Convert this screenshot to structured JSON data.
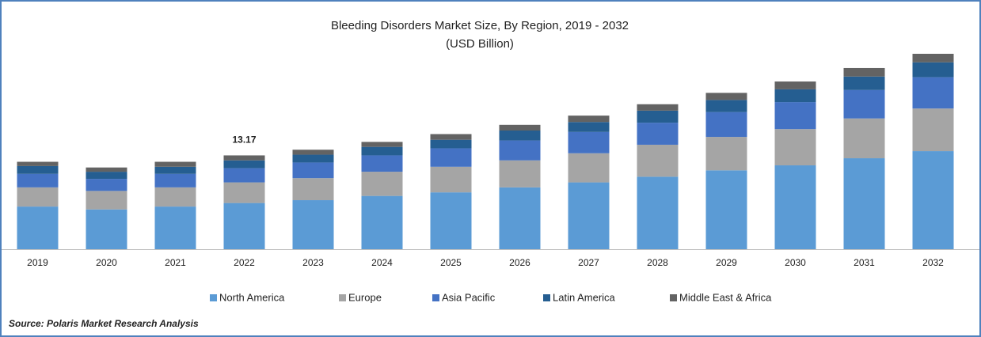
{
  "chart_data": {
    "type": "stacked_bar",
    "title": "Bleeding Disorders Market Size, By Region, 2019 - 2032",
    "subtitle": "(USD Billion)",
    "source": "Source: Polaris  Market Research Analysis",
    "categories": [
      "2019",
      "2020",
      "2021",
      "2022",
      "2023",
      "2024",
      "2025",
      "2026",
      "2027",
      "2028",
      "2029",
      "2030",
      "2031",
      "2032"
    ],
    "series": [
      {
        "name": "North America",
        "color": "#5b9bd5",
        "values": [
          6.0,
          5.6,
          6.0,
          6.5,
          6.9,
          7.5,
          8.0,
          8.7,
          9.4,
          10.2,
          11.1,
          11.8,
          12.8,
          13.8
        ]
      },
      {
        "name": "Europe",
        "color": "#a5a5a5",
        "values": [
          2.7,
          2.6,
          2.7,
          2.9,
          3.1,
          3.4,
          3.6,
          3.8,
          4.1,
          4.5,
          4.7,
          5.1,
          5.6,
          6.0
        ]
      },
      {
        "name": "Asia Pacific",
        "color": "#4472c4",
        "values": [
          1.9,
          1.7,
          1.9,
          2.0,
          2.2,
          2.3,
          2.6,
          2.8,
          3.0,
          3.1,
          3.5,
          3.8,
          4.0,
          4.4
        ]
      },
      {
        "name": "Latin America",
        "color": "#255e91",
        "values": [
          1.1,
          1.0,
          1.0,
          1.1,
          1.1,
          1.2,
          1.2,
          1.4,
          1.4,
          1.7,
          1.7,
          1.8,
          1.9,
          2.1
        ]
      },
      {
        "name": "Middle East & Africa",
        "color": "#636363",
        "values": [
          0.6,
          0.6,
          0.7,
          0.7,
          0.7,
          0.7,
          0.8,
          0.8,
          0.9,
          0.9,
          1.0,
          1.1,
          1.2,
          1.2
        ]
      }
    ],
    "annotations": [
      {
        "category": "2022",
        "value": 13.17
      }
    ]
  }
}
